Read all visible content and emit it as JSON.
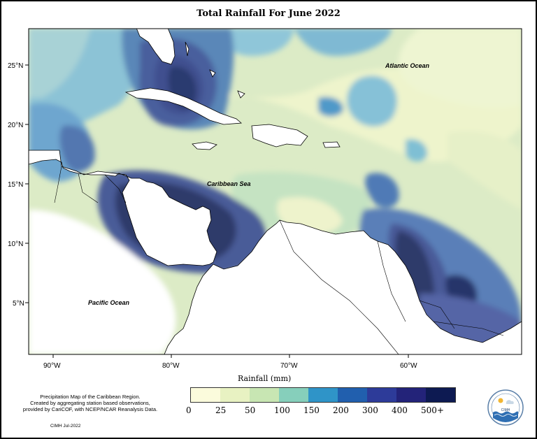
{
  "title": "Total Rainfall For June 2022",
  "map": {
    "labels": {
      "atlantic": "Atlantic Ocean",
      "caribbean": "Caribbean Sea",
      "pacific": "Pacific Ocean"
    },
    "lat_ticks": [
      "25°N",
      "20°N",
      "15°N",
      "10°N",
      "5°N"
    ],
    "lon_ticks": [
      "90°W",
      "80°W",
      "70°W",
      "60°W"
    ],
    "extent": {
      "lon": [
        -92,
        -51
      ],
      "lat": [
        1,
        28
      ]
    }
  },
  "legend": {
    "title": "Rainfall (mm)",
    "labels": [
      "0",
      "25",
      "50",
      "100",
      "150",
      "200",
      "300",
      "400",
      "500+"
    ],
    "colors": [
      "#fbfbdc",
      "#e8f2c2",
      "#c8e6b3",
      "#86cfbb",
      "#2f94c8",
      "#215fae",
      "#2d3b99",
      "#232379",
      "#0d1a52"
    ]
  },
  "caption": {
    "line1": "Precipitation Map of the Caribbean Region.",
    "line2": "Created by aggregating station based observations,",
    "line3": "provided by CariCOF, with NCEP/NCAR Reanalysis Data."
  },
  "credit": "CIMH Jul-2022",
  "logo": {
    "text": "CIMH"
  }
}
